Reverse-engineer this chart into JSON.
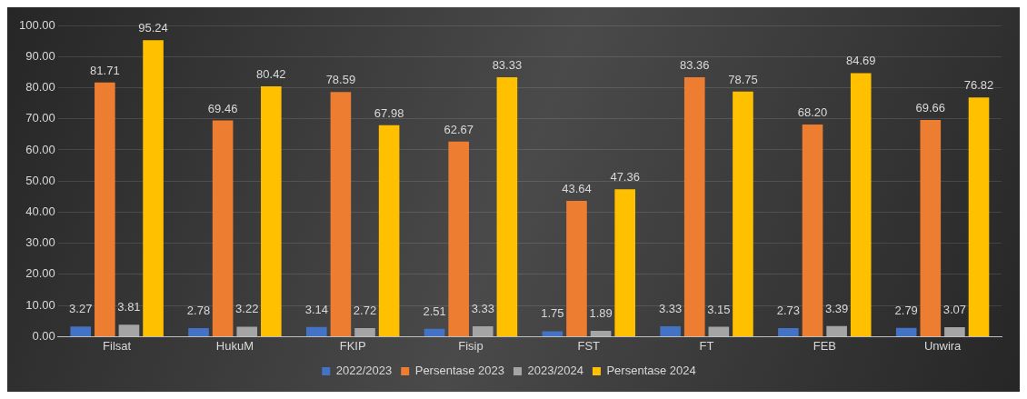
{
  "chart_data": {
    "type": "bar",
    "categories": [
      "Filsat",
      "HukuM",
      "FKIP",
      "Fisip",
      "FST",
      "FT",
      "FEB",
      "Unwira"
    ],
    "series": [
      {
        "name": "2022/2023",
        "color": "#4472c4",
        "values": [
          3.27,
          2.78,
          3.14,
          2.51,
          1.75,
          3.33,
          2.73,
          2.79
        ],
        "value_labels": [
          "3.27",
          "2.78",
          "3.14",
          "2.51",
          "1.75",
          "3.33",
          "2.73",
          "2.79"
        ]
      },
      {
        "name": "Persentase 2023",
        "color": "#ed7d31",
        "values": [
          81.71,
          69.46,
          78.59,
          62.67,
          43.64,
          83.36,
          68.2,
          69.66
        ],
        "value_labels": [
          "81.71",
          "69.46",
          "78.59",
          "62.67",
          "43.64",
          "83.36",
          "68.20",
          "69.66"
        ]
      },
      {
        "name": "2023/2024",
        "color": "#a5a5a5",
        "values": [
          3.81,
          3.22,
          2.72,
          3.33,
          1.89,
          3.15,
          3.39,
          3.07
        ],
        "value_labels": [
          "3.81",
          "3.22",
          "2.72",
          "3.33",
          "1.89",
          "3.15",
          "3.39",
          "3.07"
        ]
      },
      {
        "name": "Persentase 2024",
        "color": "#ffc000",
        "values": [
          95.24,
          80.42,
          67.98,
          83.33,
          47.36,
          78.75,
          84.69,
          76.82
        ],
        "value_labels": [
          "95.24",
          "80.42",
          "67.98",
          "83.33",
          "47.36",
          "78.75",
          "84.69",
          "76.82"
        ]
      }
    ],
    "ylim": [
      0,
      100
    ],
    "yticks": [
      {
        "value": 0,
        "label": "0.00"
      },
      {
        "value": 10,
        "label": "10.00"
      },
      {
        "value": 20,
        "label": "20.00"
      },
      {
        "value": 30,
        "label": "30.00"
      },
      {
        "value": 40,
        "label": "40.00"
      },
      {
        "value": 50,
        "label": "50.00"
      },
      {
        "value": 60,
        "label": "60.00"
      },
      {
        "value": 70,
        "label": "70.00"
      },
      {
        "value": 80,
        "label": "80.00"
      },
      {
        "value": 90,
        "label": "90.00"
      },
      {
        "value": 100,
        "label": "100.00"
      }
    ],
    "grid": "y",
    "legend": "bottom"
  }
}
